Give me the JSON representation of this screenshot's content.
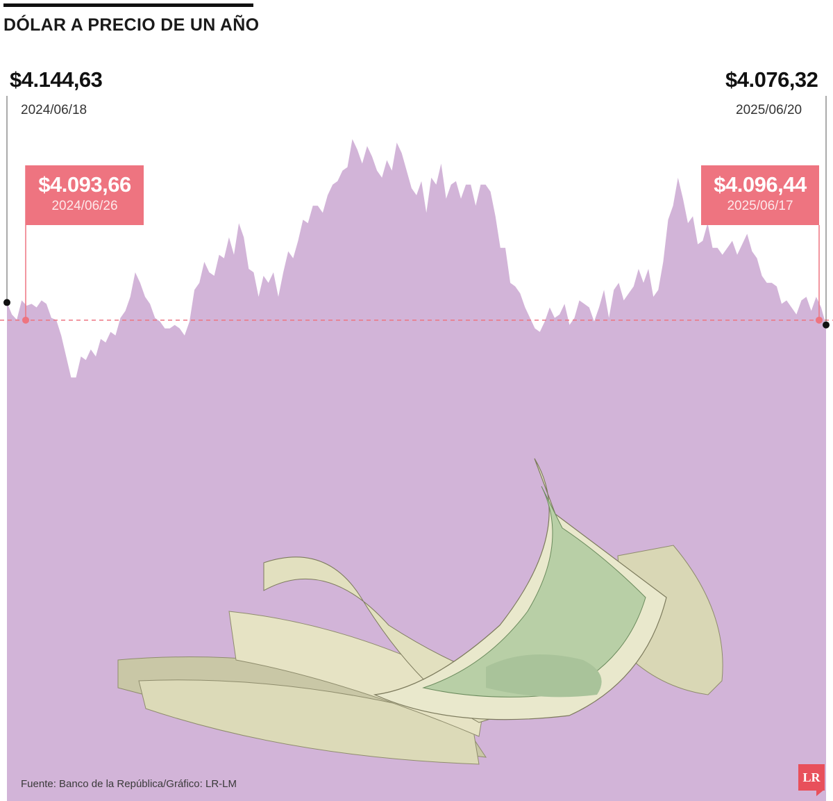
{
  "title": "DÓLAR A PRECIO DE UN AÑO",
  "start": {
    "value": "$4.144,63",
    "date": "2024/06/18"
  },
  "end": {
    "value": "$4.076,32",
    "date": "2025/06/20"
  },
  "callout_left": {
    "value": "$4.093,66",
    "date": "2024/06/26"
  },
  "callout_right": {
    "value": "$4.096,44",
    "date": "2025/06/17"
  },
  "source": "Fuente: Banco de la República/Gráfico: LR-LM",
  "logo": "LR",
  "colors": {
    "area": "#d2b4d8",
    "accent": "#ee7480",
    "ink": "#111111"
  },
  "chart_data": {
    "type": "area",
    "title": "DÓLAR A PRECIO DE UN AÑO",
    "x_range": [
      "2024/06/18",
      "2025/06/20"
    ],
    "reference_line": 4093.66,
    "ylim": [
      3600,
      4650
    ],
    "values": [
      4144,
      4110,
      4095,
      4150,
      4135,
      4140,
      4130,
      4150,
      4140,
      4100,
      4094,
      4050,
      3990,
      3930,
      3930,
      3990,
      3980,
      4010,
      3990,
      4040,
      4030,
      4060,
      4050,
      4100,
      4120,
      4160,
      4230,
      4200,
      4160,
      4140,
      4100,
      4090,
      4070,
      4070,
      4080,
      4070,
      4050,
      4090,
      4180,
      4200,
      4260,
      4230,
      4220,
      4280,
      4270,
      4330,
      4280,
      4370,
      4330,
      4240,
      4230,
      4160,
      4220,
      4200,
      4230,
      4160,
      4230,
      4290,
      4270,
      4320,
      4380,
      4370,
      4420,
      4420,
      4400,
      4450,
      4480,
      4490,
      4520,
      4530,
      4610,
      4580,
      4540,
      4590,
      4560,
      4520,
      4500,
      4550,
      4520,
      4600,
      4570,
      4520,
      4470,
      4450,
      4490,
      4400,
      4500,
      4480,
      4540,
      4440,
      4480,
      4490,
      4440,
      4480,
      4480,
      4420,
      4480,
      4480,
      4460,
      4390,
      4300,
      4300,
      4200,
      4190,
      4170,
      4130,
      4100,
      4070,
      4060,
      4090,
      4130,
      4100,
      4110,
      4140,
      4080,
      4100,
      4150,
      4140,
      4130,
      4090,
      4130,
      4180,
      4100,
      4180,
      4200,
      4150,
      4170,
      4190,
      4240,
      4200,
      4240,
      4160,
      4180,
      4260,
      4380,
      4420,
      4500,
      4440,
      4370,
      4390,
      4310,
      4320,
      4370,
      4300,
      4300,
      4280,
      4300,
      4320,
      4280,
      4310,
      4340,
      4290,
      4270,
      4220,
      4200,
      4200,
      4190,
      4140,
      4150,
      4130,
      4110,
      4150,
      4160,
      4120,
      4160,
      4130,
      4080
    ]
  }
}
